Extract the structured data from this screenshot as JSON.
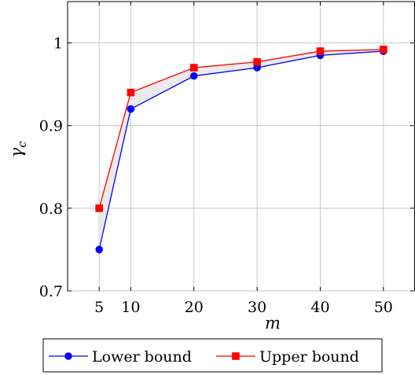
{
  "chart_data": {
    "type": "line",
    "xlabel": "m",
    "ylabel": "γ",
    "ylabel_sub": "c",
    "xlim": [
      0,
      55
    ],
    "ylim": [
      0.7,
      1.05
    ],
    "x": [
      5,
      10,
      20,
      30,
      40,
      50
    ],
    "x_tick_labels": [
      "5",
      "10",
      "20",
      "30",
      "40",
      "50"
    ],
    "y_ticks": [
      0.7,
      0.8,
      0.9,
      1.0
    ],
    "y_tick_labels": [
      "0.7",
      "0.8",
      "0.9",
      "1"
    ],
    "grid": true,
    "shaded_between_series": true,
    "legend_position": "bottom-center",
    "series": [
      {
        "name": "Lower bound",
        "marker": "circle",
        "color": "#0000ff",
        "values": [
          0.75,
          0.92,
          0.96,
          0.97,
          0.985,
          0.99
        ]
      },
      {
        "name": "Upper bound",
        "marker": "square",
        "color": "#ff0000",
        "values": [
          0.8,
          0.94,
          0.97,
          0.977,
          0.99,
          0.992
        ]
      }
    ]
  }
}
